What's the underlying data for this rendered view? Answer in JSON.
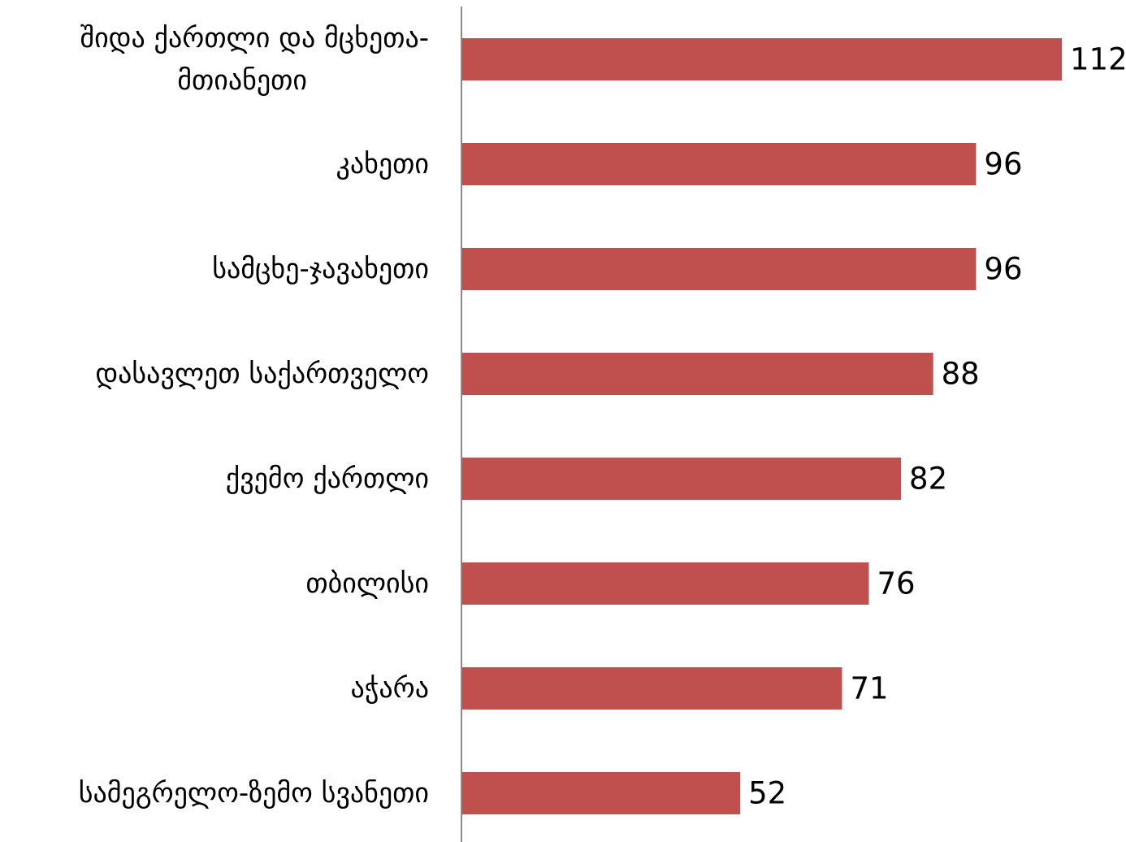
{
  "chart_data": {
    "type": "bar",
    "orientation": "horizontal",
    "categories": [
      "შიდა ქართლი და მცხეთა-მთიანეთი",
      "კახეთი",
      "სამცხე-ჯავახეთი",
      "დასავლეთ საქართველო",
      "ქვემო ქართლი",
      "თბილისი",
      "აჭარა",
      "სამეგრელო-ზემო სვანეთი"
    ],
    "values": [
      112,
      96,
      96,
      88,
      82,
      76,
      71,
      52
    ],
    "data_labels": [
      "112",
      "96",
      "96",
      "88",
      "82",
      "76",
      "71",
      "52"
    ],
    "bar_color": "#c0504d",
    "axis_color": "#888888",
    "xlim": [
      0,
      112
    ],
    "grid": false,
    "legend": "none",
    "title": "",
    "xlabel": "",
    "ylabel": ""
  }
}
